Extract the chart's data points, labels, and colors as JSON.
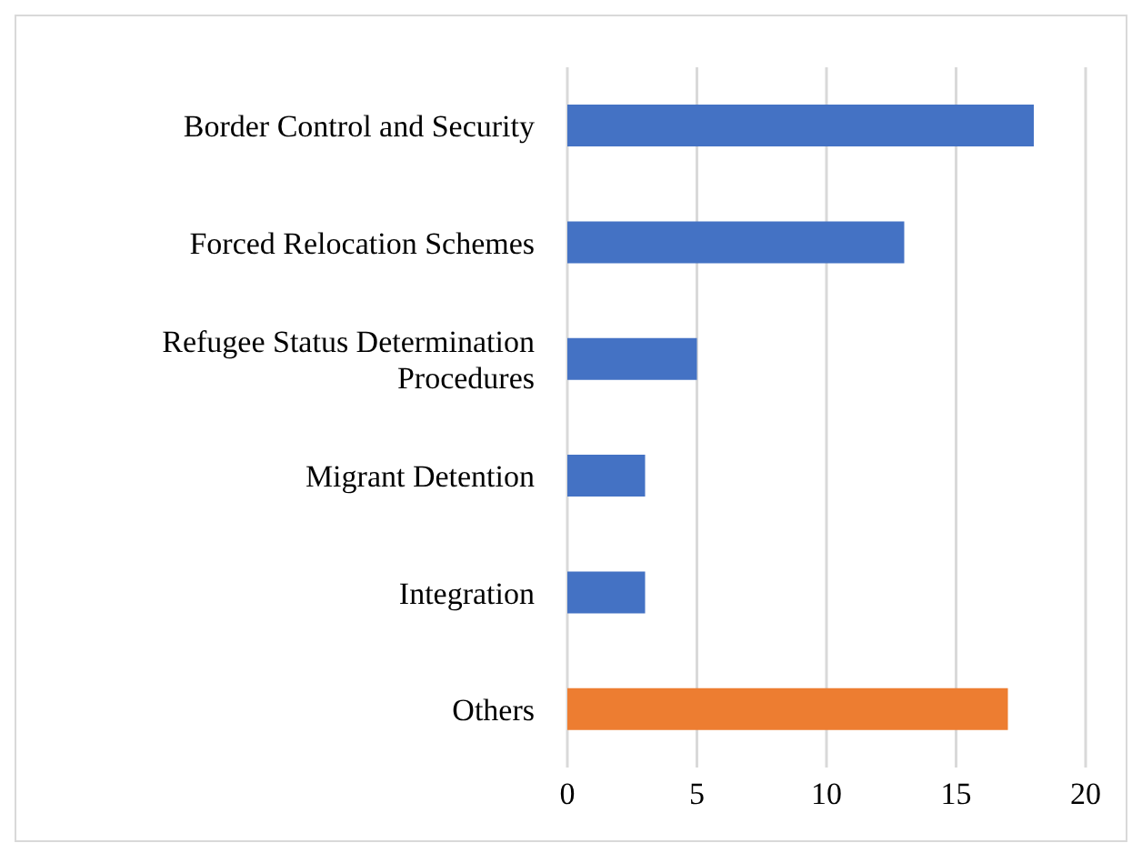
{
  "chart_data": {
    "type": "bar",
    "orientation": "horizontal",
    "categories": [
      "Border Control and Security",
      "Forced Relocation Schemes",
      "Refugee Status Determination Procedures",
      "Migrant Detention",
      "Integration",
      "Others"
    ],
    "values": [
      18,
      13,
      5,
      3,
      3,
      17
    ],
    "colors": [
      "#4472c4",
      "#4472c4",
      "#4472c4",
      "#4472c4",
      "#4472c4",
      "#ed7d31"
    ],
    "xlim": [
      0,
      20
    ],
    "xticks": [
      0,
      5,
      10,
      15,
      20
    ],
    "grid": "x"
  }
}
